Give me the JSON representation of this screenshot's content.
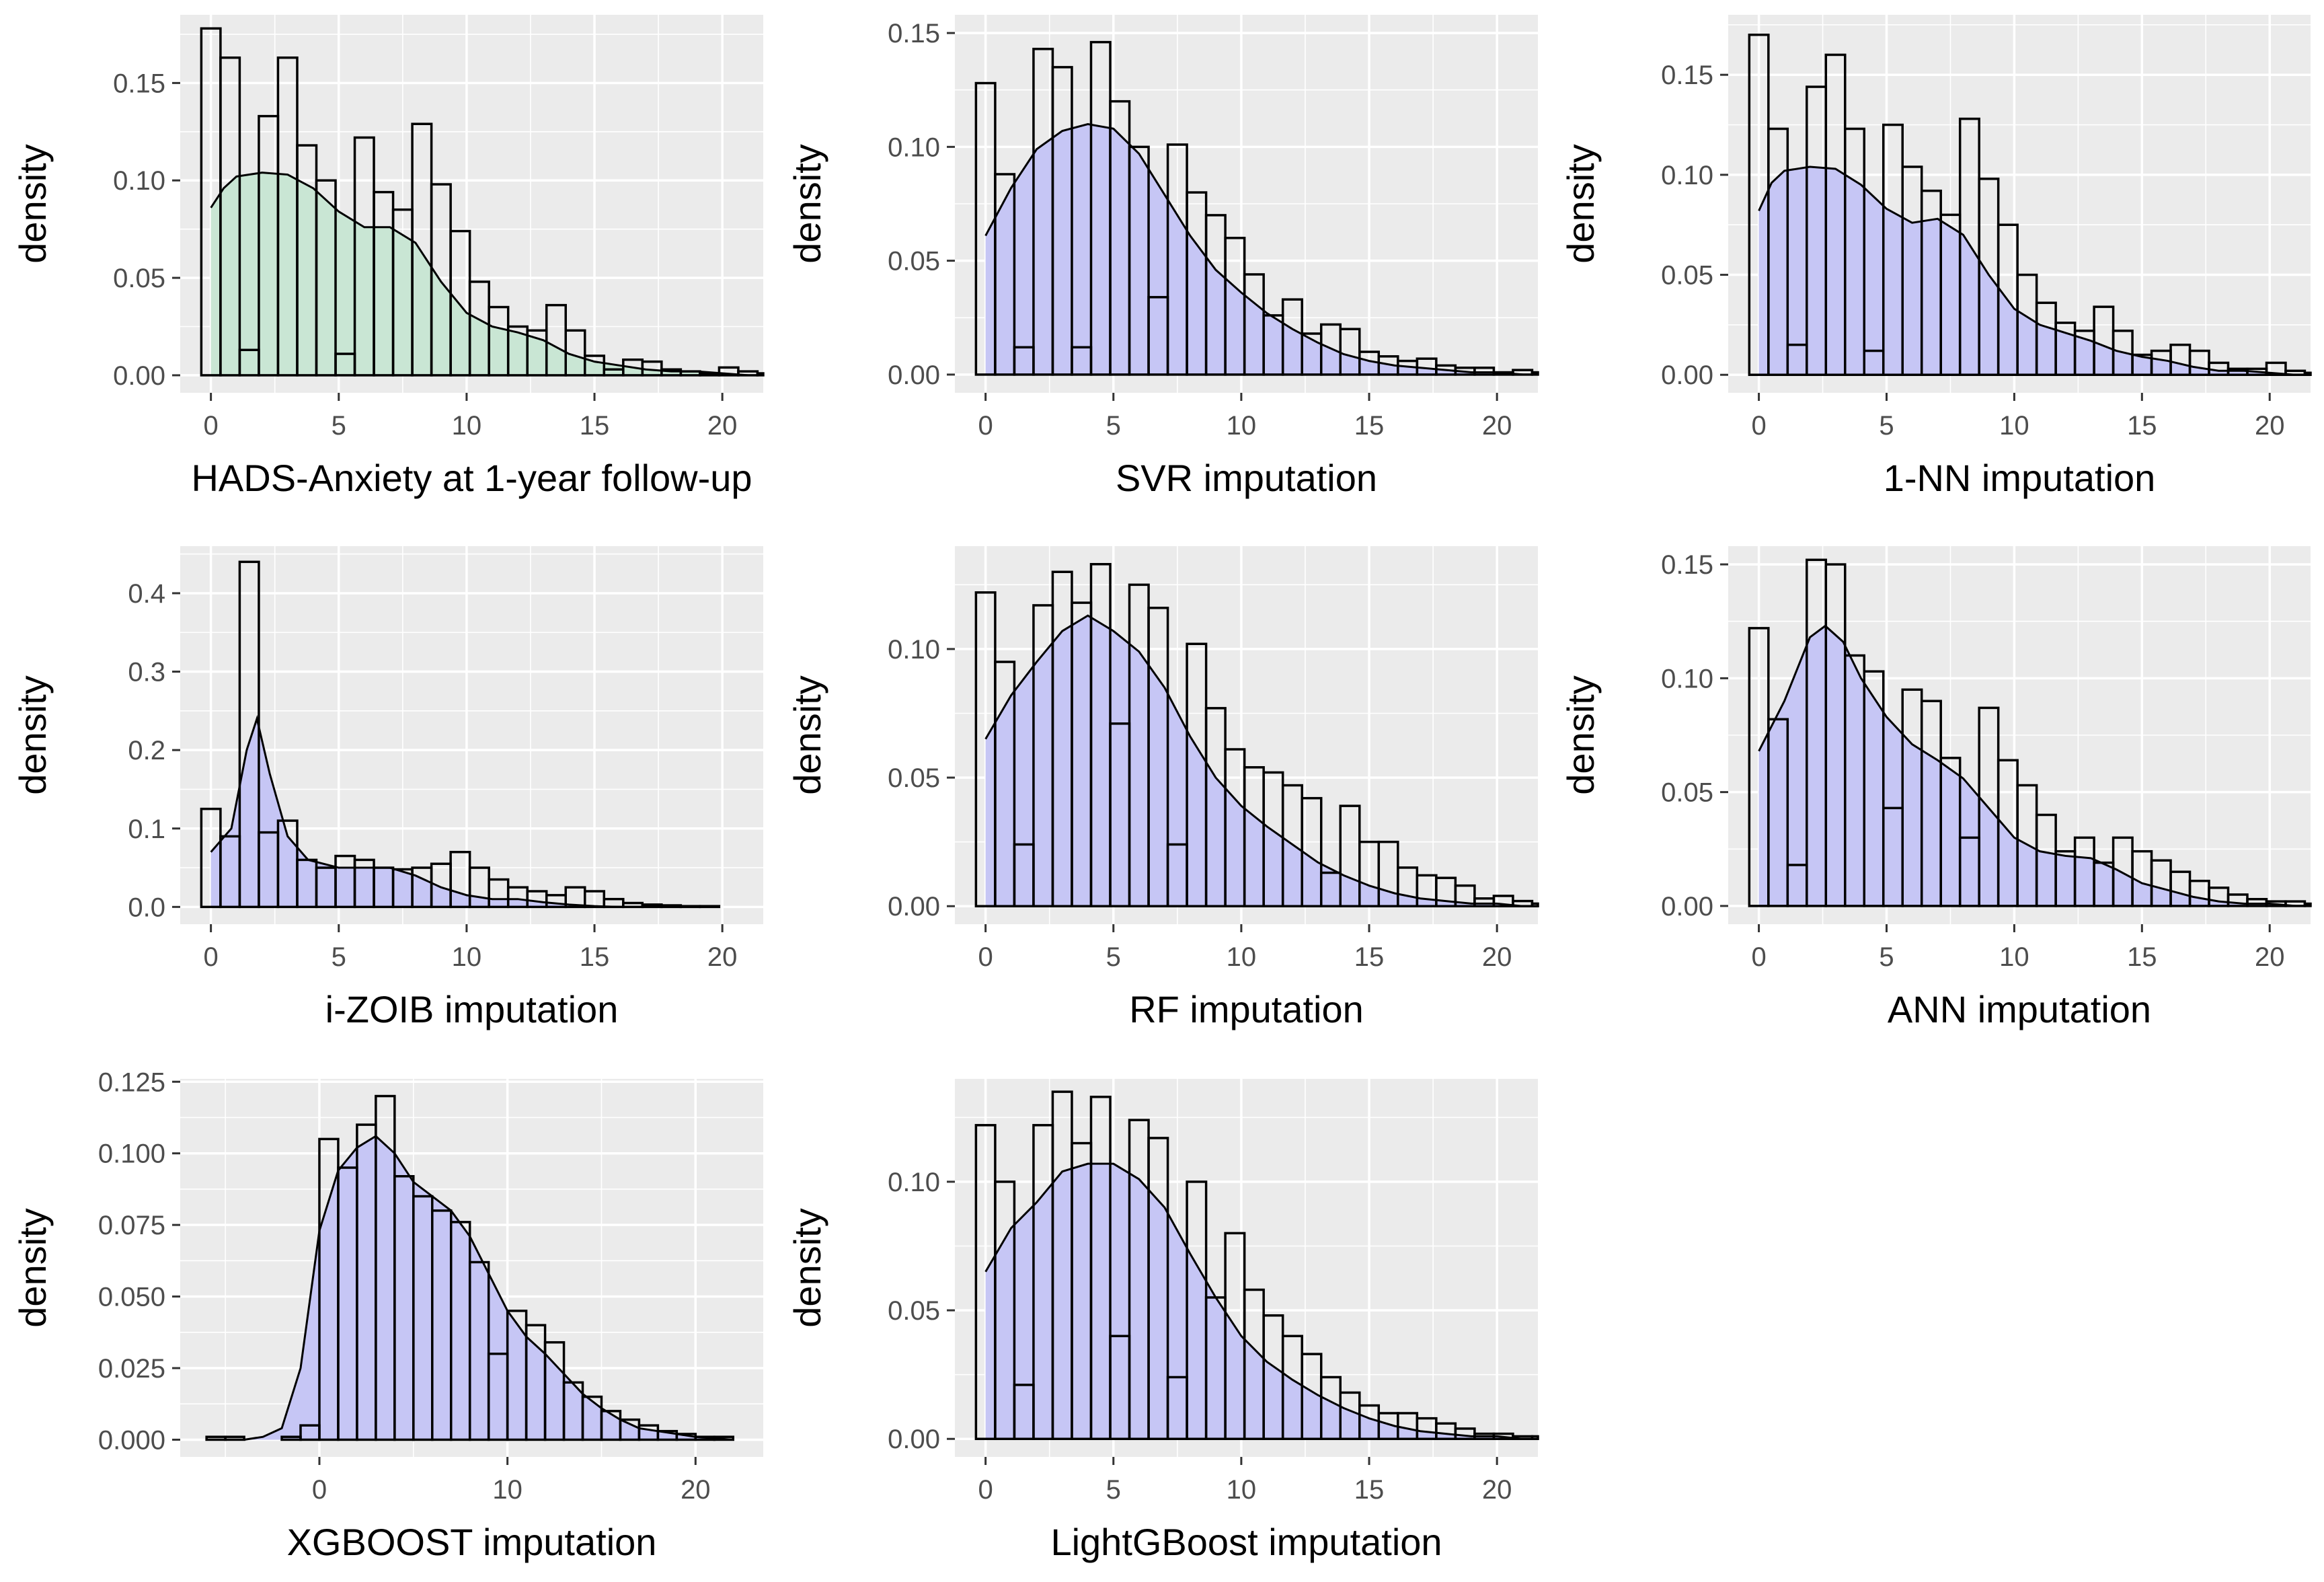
{
  "chart_data": [
    {
      "type": "histogram-density",
      "xlabel": "HADS-Anxiety at 1-year follow-up",
      "ylabel": "density",
      "fill_color": "#c9e6d4",
      "xlim": [
        -1.2,
        21.6
      ],
      "ylim": [
        -0.009,
        0.185
      ],
      "xticks": [
        0,
        5,
        10,
        15,
        20
      ],
      "xtick_labels": [
        "0",
        "5",
        "10",
        "15",
        "20"
      ],
      "yticks": [
        0.0,
        0.05,
        0.1,
        0.15
      ],
      "ytick_labels": [
        "0.00",
        "0.05",
        "0.10",
        "0.15"
      ],
      "bin_width": 0.75,
      "bin_start": -0.375,
      "histogram": [
        0.178,
        0.163,
        0.013,
        0.133,
        0.163,
        0.118,
        0.1,
        0.011,
        0.122,
        0.094,
        0.085,
        0.129,
        0.098,
        0.074,
        0.048,
        0.035,
        0.025,
        0.023,
        0.036,
        0.023,
        0.01,
        0.003,
        0.008,
        0.007,
        0.003,
        0.002,
        0.001,
        0.004,
        0.002,
        0.001
      ],
      "density": [
        [
          0,
          0.086
        ],
        [
          0.5,
          0.096
        ],
        [
          1,
          0.102
        ],
        [
          2,
          0.104
        ],
        [
          3,
          0.103
        ],
        [
          4,
          0.096
        ],
        [
          5,
          0.084
        ],
        [
          6,
          0.076
        ],
        [
          7,
          0.076
        ],
        [
          8,
          0.068
        ],
        [
          9,
          0.048
        ],
        [
          10,
          0.032
        ],
        [
          11,
          0.025
        ],
        [
          12,
          0.022
        ],
        [
          13,
          0.018
        ],
        [
          14,
          0.011
        ],
        [
          15,
          0.007
        ],
        [
          16,
          0.005
        ],
        [
          17,
          0.003
        ],
        [
          18,
          0.002
        ],
        [
          19,
          0.002
        ],
        [
          20,
          0.001
        ],
        [
          21,
          0.0
        ]
      ]
    },
    {
      "type": "histogram-density",
      "xlabel": "SVR imputation",
      "ylabel": "density",
      "fill_color": "#c6c6f5",
      "xlim": [
        -1.2,
        21.6
      ],
      "ylim": [
        -0.008,
        0.158
      ],
      "xticks": [
        0,
        5,
        10,
        15,
        20
      ],
      "xtick_labels": [
        "0",
        "5",
        "10",
        "15",
        "20"
      ],
      "yticks": [
        0.0,
        0.05,
        0.1,
        0.15
      ],
      "ytick_labels": [
        "0.00",
        "0.05",
        "0.10",
        "0.15"
      ],
      "bin_width": 0.75,
      "bin_start": -0.375,
      "histogram": [
        0.128,
        0.088,
        0.012,
        0.143,
        0.135,
        0.012,
        0.146,
        0.12,
        0.1,
        0.034,
        0.101,
        0.08,
        0.07,
        0.06,
        0.044,
        0.026,
        0.033,
        0.018,
        0.022,
        0.02,
        0.01,
        0.008,
        0.006,
        0.007,
        0.004,
        0.003,
        0.003,
        0.001,
        0.002,
        0.001
      ],
      "density": [
        [
          0,
          0.061
        ],
        [
          1,
          0.082
        ],
        [
          2,
          0.099
        ],
        [
          3,
          0.107
        ],
        [
          4,
          0.11
        ],
        [
          5,
          0.108
        ],
        [
          6,
          0.097
        ],
        [
          7,
          0.079
        ],
        [
          8,
          0.061
        ],
        [
          9,
          0.046
        ],
        [
          10,
          0.036
        ],
        [
          11,
          0.027
        ],
        [
          12,
          0.02
        ],
        [
          13,
          0.014
        ],
        [
          14,
          0.009
        ],
        [
          15,
          0.006
        ],
        [
          16,
          0.004
        ],
        [
          17,
          0.003
        ],
        [
          18,
          0.002
        ],
        [
          19,
          0.001
        ],
        [
          20,
          0.001
        ],
        [
          21,
          0.0
        ]
      ]
    },
    {
      "type": "histogram-density",
      "xlabel": "1-NN imputation",
      "ylabel": "density",
      "fill_color": "#c6c6f5",
      "xlim": [
        -1.2,
        21.6
      ],
      "ylim": [
        -0.009,
        0.18
      ],
      "xticks": [
        0,
        5,
        10,
        15,
        20
      ],
      "xtick_labels": [
        "0",
        "5",
        "10",
        "15",
        "20"
      ],
      "yticks": [
        0.0,
        0.05,
        0.1,
        0.15
      ],
      "ytick_labels": [
        "0.00",
        "0.05",
        "0.10",
        "0.15"
      ],
      "bin_width": 0.75,
      "bin_start": -0.375,
      "histogram": [
        0.17,
        0.123,
        0.015,
        0.144,
        0.16,
        0.123,
        0.012,
        0.125,
        0.104,
        0.092,
        0.08,
        0.128,
        0.098,
        0.075,
        0.05,
        0.036,
        0.026,
        0.022,
        0.034,
        0.022,
        0.01,
        0.012,
        0.015,
        0.012,
        0.006,
        0.003,
        0.003,
        0.006,
        0.002,
        0.001
      ],
      "density": [
        [
          0,
          0.082
        ],
        [
          0.5,
          0.096
        ],
        [
          1,
          0.102
        ],
        [
          2,
          0.104
        ],
        [
          3,
          0.103
        ],
        [
          4,
          0.095
        ],
        [
          5,
          0.083
        ],
        [
          6,
          0.076
        ],
        [
          7,
          0.078
        ],
        [
          8,
          0.07
        ],
        [
          9,
          0.05
        ],
        [
          10,
          0.033
        ],
        [
          11,
          0.025
        ],
        [
          12,
          0.021
        ],
        [
          13,
          0.017
        ],
        [
          14,
          0.012
        ],
        [
          15,
          0.009
        ],
        [
          16,
          0.007
        ],
        [
          17,
          0.004
        ],
        [
          18,
          0.002
        ],
        [
          19,
          0.002
        ],
        [
          20,
          0.001
        ],
        [
          21,
          0.0
        ]
      ]
    },
    {
      "type": "histogram-density",
      "xlabel": "i-ZOIB imputation",
      "ylabel": "density",
      "fill_color": "#c6c6f5",
      "xlim": [
        -1.2,
        21.6
      ],
      "ylim": [
        -0.022,
        0.46
      ],
      "xticks": [
        0,
        5,
        10,
        15,
        20
      ],
      "xtick_labels": [
        "0",
        "5",
        "10",
        "15",
        "20"
      ],
      "yticks": [
        0.0,
        0.1,
        0.2,
        0.3,
        0.4
      ],
      "ytick_labels": [
        "0.0",
        "0.1",
        "0.2",
        "0.3",
        "0.4"
      ],
      "bin_width": 0.75,
      "bin_start": -0.375,
      "histogram": [
        0.125,
        0.09,
        0.44,
        0.095,
        0.11,
        0.06,
        0.05,
        0.065,
        0.06,
        0.05,
        0.048,
        0.05,
        0.055,
        0.07,
        0.05,
        0.035,
        0.025,
        0.02,
        0.015,
        0.025,
        0.02,
        0.01,
        0.005,
        0.003,
        0.002,
        0.001,
        0.001,
        0.0,
        0.0,
        0.0
      ],
      "density": [
        [
          0,
          0.07
        ],
        [
          0.8,
          0.1
        ],
        [
          1.4,
          0.2
        ],
        [
          1.8,
          0.24
        ],
        [
          2.3,
          0.17
        ],
        [
          3,
          0.09
        ],
        [
          3.8,
          0.06
        ],
        [
          5,
          0.05
        ],
        [
          6,
          0.05
        ],
        [
          7,
          0.05
        ],
        [
          8,
          0.04
        ],
        [
          9,
          0.025
        ],
        [
          10,
          0.015
        ],
        [
          11,
          0.01
        ],
        [
          12,
          0.01
        ],
        [
          13,
          0.006
        ],
        [
          14,
          0.003
        ],
        [
          15,
          0.001
        ],
        [
          16,
          0.0
        ]
      ]
    },
    {
      "type": "histogram-density",
      "xlabel": "RF imputation",
      "ylabel": "density",
      "fill_color": "#c6c6f5",
      "xlim": [
        -1.2,
        21.6
      ],
      "ylim": [
        -0.007,
        0.14
      ],
      "xticks": [
        0,
        5,
        10,
        15,
        20
      ],
      "xtick_labels": [
        "0",
        "5",
        "10",
        "15",
        "20"
      ],
      "yticks": [
        0.0,
        0.05,
        0.1
      ],
      "ytick_labels": [
        "0.00",
        "0.05",
        "0.10"
      ],
      "bin_width": 0.75,
      "bin_start": -0.375,
      "histogram": [
        0.122,
        0.095,
        0.024,
        0.117,
        0.13,
        0.118,
        0.133,
        0.071,
        0.125,
        0.116,
        0.024,
        0.102,
        0.077,
        0.061,
        0.054,
        0.052,
        0.047,
        0.042,
        0.013,
        0.039,
        0.025,
        0.025,
        0.015,
        0.012,
        0.011,
        0.008,
        0.003,
        0.004,
        0.002,
        0.001
      ],
      "density": [
        [
          0,
          0.065
        ],
        [
          1,
          0.082
        ],
        [
          2,
          0.095
        ],
        [
          3,
          0.107
        ],
        [
          4,
          0.113
        ],
        [
          5,
          0.107
        ],
        [
          6,
          0.099
        ],
        [
          7,
          0.085
        ],
        [
          8,
          0.066
        ],
        [
          9,
          0.05
        ],
        [
          10,
          0.039
        ],
        [
          11,
          0.031
        ],
        [
          12,
          0.024
        ],
        [
          13,
          0.017
        ],
        [
          14,
          0.012
        ],
        [
          15,
          0.008
        ],
        [
          16,
          0.005
        ],
        [
          17,
          0.003
        ],
        [
          18,
          0.002
        ],
        [
          19,
          0.001
        ],
        [
          20,
          0.001
        ],
        [
          21,
          0.0
        ]
      ]
    },
    {
      "type": "histogram-density",
      "xlabel": "ANN imputation",
      "ylabel": "density",
      "fill_color": "#c6c6f5",
      "xlim": [
        -1.2,
        21.6
      ],
      "ylim": [
        -0.008,
        0.158
      ],
      "xticks": [
        0,
        5,
        10,
        15,
        20
      ],
      "xtick_labels": [
        "0",
        "5",
        "10",
        "15",
        "20"
      ],
      "yticks": [
        0.0,
        0.05,
        0.1,
        0.15
      ],
      "ytick_labels": [
        "0.00",
        "0.05",
        "0.10",
        "0.15"
      ],
      "bin_width": 0.75,
      "bin_start": -0.375,
      "histogram": [
        0.122,
        0.082,
        0.018,
        0.152,
        0.15,
        0.11,
        0.103,
        0.043,
        0.095,
        0.09,
        0.065,
        0.03,
        0.087,
        0.064,
        0.053,
        0.04,
        0.024,
        0.03,
        0.019,
        0.03,
        0.024,
        0.02,
        0.015,
        0.011,
        0.008,
        0.005,
        0.003,
        0.002,
        0.002,
        0.001
      ],
      "density": [
        [
          0,
          0.068
        ],
        [
          1,
          0.09
        ],
        [
          2,
          0.118
        ],
        [
          2.6,
          0.123
        ],
        [
          3.3,
          0.116
        ],
        [
          4,
          0.1
        ],
        [
          5,
          0.083
        ],
        [
          6,
          0.071
        ],
        [
          7,
          0.064
        ],
        [
          8,
          0.056
        ],
        [
          9,
          0.043
        ],
        [
          10,
          0.03
        ],
        [
          11,
          0.024
        ],
        [
          12,
          0.022
        ],
        [
          13,
          0.021
        ],
        [
          14,
          0.016
        ],
        [
          15,
          0.01
        ],
        [
          16,
          0.007
        ],
        [
          17,
          0.004
        ],
        [
          18,
          0.002
        ],
        [
          19,
          0.001
        ],
        [
          20,
          0.001
        ],
        [
          21,
          0.0
        ]
      ]
    },
    {
      "type": "histogram-density",
      "xlabel": "XGBOOST imputation",
      "ylabel": "density",
      "fill_color": "#c6c6f5",
      "xlim": [
        -7.4,
        23.6
      ],
      "ylim": [
        -0.006,
        0.126
      ],
      "xticks": [
        0,
        10,
        20
      ],
      "xtick_labels": [
        "0",
        "10",
        "20"
      ],
      "yticks": [
        0.0,
        0.025,
        0.05,
        0.075,
        0.1,
        0.125
      ],
      "ytick_labels": [
        "0.000",
        "0.025",
        "0.050",
        "0.075",
        "0.100",
        "0.125"
      ],
      "bin_width": 1.0,
      "bin_start": -6.0,
      "histogram": [
        0.001,
        0.001,
        0.0,
        0.0,
        0.001,
        0.005,
        0.105,
        0.095,
        0.11,
        0.12,
        0.092,
        0.085,
        0.08,
        0.076,
        0.062,
        0.03,
        0.045,
        0.04,
        0.034,
        0.02,
        0.015,
        0.01,
        0.007,
        0.005,
        0.003,
        0.002,
        0.001,
        0.001,
        0.0
      ],
      "density": [
        [
          -6,
          0.0
        ],
        [
          -4,
          0.0
        ],
        [
          -3,
          0.001
        ],
        [
          -2,
          0.004
        ],
        [
          -1,
          0.025
        ],
        [
          0,
          0.073
        ],
        [
          1,
          0.094
        ],
        [
          2,
          0.102
        ],
        [
          3,
          0.106
        ],
        [
          4,
          0.1
        ],
        [
          5,
          0.09
        ],
        [
          6,
          0.085
        ],
        [
          7,
          0.08
        ],
        [
          8,
          0.071
        ],
        [
          9,
          0.058
        ],
        [
          10,
          0.045
        ],
        [
          11,
          0.036
        ],
        [
          12,
          0.03
        ],
        [
          13,
          0.023
        ],
        [
          14,
          0.016
        ],
        [
          15,
          0.011
        ],
        [
          16,
          0.007
        ],
        [
          17,
          0.004
        ],
        [
          18,
          0.003
        ],
        [
          19,
          0.002
        ],
        [
          20,
          0.001
        ],
        [
          22,
          0.0
        ]
      ]
    },
    {
      "type": "histogram-density",
      "xlabel": "LightGBoost imputation",
      "ylabel": "density",
      "fill_color": "#c6c6f5",
      "xlim": [
        -1.2,
        21.6
      ],
      "ylim": [
        -0.007,
        0.14
      ],
      "xticks": [
        0,
        5,
        10,
        15,
        20
      ],
      "xtick_labels": [
        "0",
        "5",
        "10",
        "15",
        "20"
      ],
      "yticks": [
        0.0,
        0.05,
        0.1
      ],
      "ytick_labels": [
        "0.00",
        "0.05",
        "0.10"
      ],
      "bin_width": 0.75,
      "bin_start": -0.375,
      "histogram": [
        0.122,
        0.1,
        0.021,
        0.122,
        0.135,
        0.115,
        0.133,
        0.04,
        0.124,
        0.117,
        0.024,
        0.1,
        0.055,
        0.08,
        0.058,
        0.048,
        0.04,
        0.033,
        0.024,
        0.018,
        0.013,
        0.01,
        0.01,
        0.008,
        0.006,
        0.004,
        0.002,
        0.002,
        0.001,
        0.001
      ],
      "density": [
        [
          0,
          0.065
        ],
        [
          1,
          0.082
        ],
        [
          2,
          0.092
        ],
        [
          3,
          0.104
        ],
        [
          4,
          0.107
        ],
        [
          5,
          0.107
        ],
        [
          6,
          0.101
        ],
        [
          7,
          0.09
        ],
        [
          8,
          0.072
        ],
        [
          9,
          0.055
        ],
        [
          10,
          0.04
        ],
        [
          11,
          0.03
        ],
        [
          12,
          0.023
        ],
        [
          13,
          0.017
        ],
        [
          14,
          0.012
        ],
        [
          15,
          0.008
        ],
        [
          16,
          0.005
        ],
        [
          17,
          0.003
        ],
        [
          18,
          0.002
        ],
        [
          19,
          0.001
        ],
        [
          20,
          0.001
        ],
        [
          21,
          0.0
        ]
      ]
    }
  ]
}
